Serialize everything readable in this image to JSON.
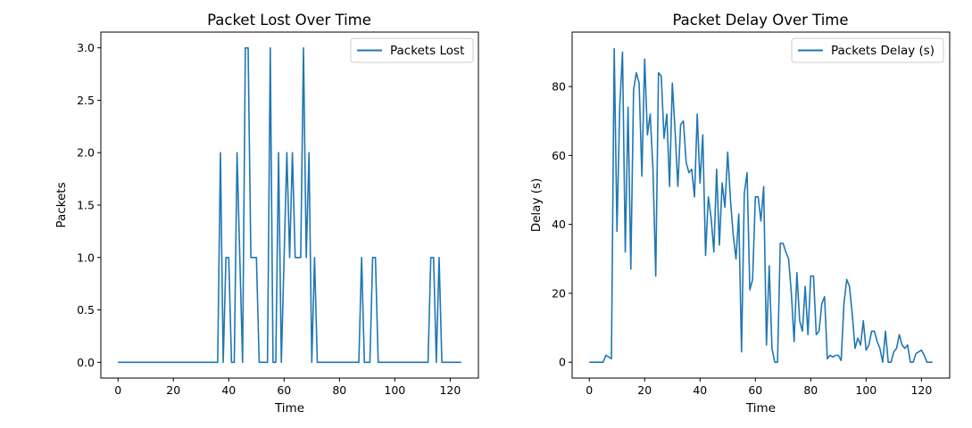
{
  "figure": {
    "background": "#ffffff",
    "line_color": "#1f77b4"
  },
  "chart_data": [
    {
      "type": "line",
      "title": "Packet Lost Over Time",
      "xlabel": "Time",
      "ylabel": "Packets",
      "xlim": [
        -6.2,
        130.2
      ],
      "ylim": [
        -0.15,
        3.15
      ],
      "xticks": [
        0,
        20,
        40,
        60,
        80,
        100,
        120
      ],
      "yticks": [
        0.0,
        0.5,
        1.0,
        1.5,
        2.0,
        2.5,
        3.0
      ],
      "xtick_labels": [
        "0",
        "20",
        "40",
        "60",
        "80",
        "100",
        "120"
      ],
      "ytick_labels": [
        "0.0",
        "0.5",
        "1.0",
        "1.5",
        "2.0",
        "2.5",
        "3.0"
      ],
      "legend_position": "top-right",
      "grid": false,
      "series": [
        {
          "name": "Packets Lost",
          "color": "#1f77b4",
          "x": [
            0,
            1,
            2,
            3,
            4,
            5,
            6,
            7,
            8,
            9,
            10,
            11,
            12,
            13,
            14,
            15,
            16,
            17,
            18,
            19,
            20,
            21,
            22,
            23,
            24,
            25,
            26,
            27,
            28,
            29,
            30,
            31,
            32,
            33,
            34,
            35,
            36,
            37,
            38,
            39,
            40,
            41,
            42,
            43,
            44,
            45,
            46,
            47,
            48,
            49,
            50,
            51,
            52,
            53,
            54,
            55,
            56,
            57,
            58,
            59,
            60,
            61,
            62,
            63,
            64,
            65,
            66,
            67,
            68,
            69,
            70,
            71,
            72,
            73,
            74,
            75,
            76,
            77,
            78,
            79,
            80,
            81,
            82,
            83,
            84,
            85,
            86,
            87,
            88,
            89,
            90,
            91,
            92,
            93,
            94,
            95,
            96,
            97,
            98,
            99,
            100,
            101,
            102,
            103,
            104,
            105,
            106,
            107,
            108,
            109,
            110,
            111,
            112,
            113,
            114,
            115,
            116,
            117,
            118,
            119,
            120,
            121,
            122,
            123,
            124
          ],
          "y": [
            0,
            0,
            0,
            0,
            0,
            0,
            0,
            0,
            0,
            0,
            0,
            0,
            0,
            0,
            0,
            0,
            0,
            0,
            0,
            0,
            0,
            0,
            0,
            0,
            0,
            0,
            0,
            0,
            0,
            0,
            0,
            0,
            0,
            0,
            0,
            0,
            0,
            2,
            0,
            1,
            1,
            0,
            0,
            2,
            1,
            0,
            3,
            3,
            1,
            1,
            1,
            0,
            0,
            0,
            0,
            3,
            0,
            0,
            2,
            0,
            1,
            2,
            1,
            2,
            1,
            1,
            1,
            3,
            1,
            2,
            0,
            1,
            0,
            0,
            0,
            0,
            0,
            0,
            0,
            0,
            0,
            0,
            0,
            0,
            0,
            0,
            0,
            0,
            1,
            0,
            0,
            0,
            1,
            1,
            0,
            0,
            0,
            0,
            0,
            0,
            0,
            0,
            0,
            0,
            0,
            0,
            0,
            0,
            0,
            0,
            0,
            0,
            0,
            1,
            1,
            0,
            1,
            0,
            0,
            0,
            0,
            0,
            0,
            0,
            0
          ]
        }
      ]
    },
    {
      "type": "line",
      "title": "Packet Delay Over Time",
      "xlabel": "Time",
      "ylabel": "Delay (s)",
      "xlim": [
        -6.2,
        130.2
      ],
      "ylim": [
        -4.6,
        95.8
      ],
      "xticks": [
        0,
        20,
        40,
        60,
        80,
        100,
        120
      ],
      "yticks": [
        0,
        20,
        40,
        60,
        80
      ],
      "xtick_labels": [
        "0",
        "20",
        "40",
        "60",
        "80",
        "100",
        "120"
      ],
      "ytick_labels": [
        "0",
        "20",
        "40",
        "60",
        "80"
      ],
      "legend_position": "top-right",
      "grid": false,
      "series": [
        {
          "name": "Packets Delay (s)",
          "color": "#1f77b4",
          "x": [
            0,
            1,
            2,
            3,
            4,
            5,
            6,
            7,
            8,
            9,
            10,
            11,
            12,
            13,
            14,
            15,
            16,
            17,
            18,
            19,
            20,
            21,
            22,
            23,
            24,
            25,
            26,
            27,
            28,
            29,
            30,
            31,
            32,
            33,
            34,
            35,
            36,
            37,
            38,
            39,
            40,
            41,
            42,
            43,
            44,
            45,
            46,
            47,
            48,
            49,
            50,
            51,
            52,
            53,
            54,
            55,
            56,
            57,
            58,
            59,
            60,
            61,
            62,
            63,
            64,
            65,
            66,
            67,
            68,
            69,
            70,
            71,
            72,
            73,
            74,
            75,
            76,
            77,
            78,
            79,
            80,
            81,
            82,
            83,
            84,
            85,
            86,
            87,
            88,
            89,
            90,
            91,
            92,
            93,
            94,
            95,
            96,
            97,
            98,
            99,
            100,
            101,
            102,
            103,
            104,
            105,
            106,
            107,
            108,
            109,
            110,
            111,
            112,
            113,
            114,
            115,
            116,
            117,
            118,
            119,
            120,
            121,
            122,
            123,
            124
          ],
          "y": [
            0,
            0,
            0,
            0,
            0,
            0,
            2,
            1.5,
            1,
            91,
            38,
            74,
            90,
            32,
            74,
            27,
            79,
            84,
            81,
            54,
            88,
            66,
            72,
            56,
            25,
            84,
            83,
            65,
            72,
            51,
            81,
            67,
            51,
            69,
            70,
            58,
            55,
            56,
            48,
            72,
            52,
            66,
            31,
            48,
            42,
            32,
            56,
            34,
            52,
            45,
            61,
            47,
            37,
            30,
            43,
            3,
            49,
            55,
            21,
            24,
            48,
            48,
            41,
            51,
            5,
            28,
            4,
            0,
            0,
            34.5,
            34.5,
            32,
            30,
            20,
            6,
            26,
            12,
            9,
            22,
            8,
            25,
            25,
            8,
            9,
            17,
            19,
            1,
            2,
            1.5,
            2,
            2,
            0.5,
            17,
            24,
            22,
            14,
            4,
            7,
            5,
            12,
            3.5,
            5,
            9,
            9,
            6,
            4,
            0,
            9,
            0,
            0,
            3,
            4,
            8,
            5,
            4,
            5,
            0,
            0,
            2.5,
            3,
            3.5,
            2,
            0,
            0,
            0
          ]
        }
      ]
    }
  ]
}
